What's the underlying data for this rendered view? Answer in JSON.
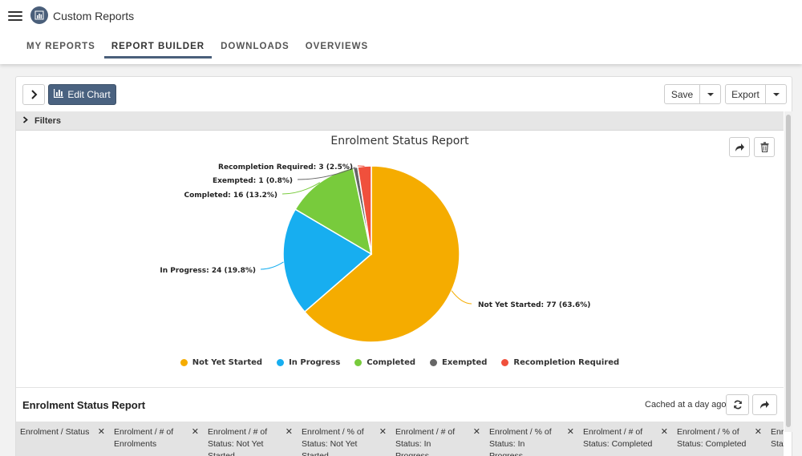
{
  "header": {
    "app_title": "Custom Reports",
    "menu_icon": "hamburger-menu-icon",
    "logo_icon": "bar-chart-icon",
    "tabs": [
      {
        "label": "MY REPORTS",
        "active": false
      },
      {
        "label": "REPORT BUILDER",
        "active": true
      },
      {
        "label": "DOWNLOADS",
        "active": false
      },
      {
        "label": "OVERVIEWS",
        "active": false
      }
    ]
  },
  "toolbar": {
    "edit_chart_label": "Edit Chart",
    "save_label": "Save",
    "export_label": "Export"
  },
  "filters": {
    "label": "Filters"
  },
  "chart_data": {
    "type": "pie",
    "title": "Enrolment Status Report",
    "categories": [
      "Not Yet Started",
      "In Progress",
      "Completed",
      "Exempted",
      "Recompletion Required"
    ],
    "values": [
      77,
      24,
      16,
      1,
      3
    ],
    "percentages": [
      63.6,
      19.8,
      13.2,
      0.8,
      2.5
    ],
    "colors": [
      "#f5ac00",
      "#17aef0",
      "#78cb3c",
      "#666666",
      "#f0503c"
    ],
    "data_labels": [
      "Not Yet Started: 77 (63.6%)",
      "In Progress: 24 (19.8%)",
      "Completed: 16 (13.2%)",
      "Exempted: 1 (0.8%)",
      "Recompletion Required: 3 (2.5%)"
    ],
    "legend_position": "bottom"
  },
  "report": {
    "title": "Enrolment Status Report",
    "cached_text": "Cached at a day ago",
    "columns": [
      "Enrolment / Status",
      "Enrolment / # of Enrolments",
      "Enrolment / # of Status: Not Yet Started",
      "Enrolment / % of Status: Not Yet Started",
      "Enrolment / # of Status: In Progress",
      "Enrolment / % of Status: In Progress",
      "Enrolment / # of Status: Completed",
      "Enrolment / % of Status: Completed",
      "Enrolment / # of Status: Exempted"
    ],
    "remove_symbol": "✕"
  }
}
